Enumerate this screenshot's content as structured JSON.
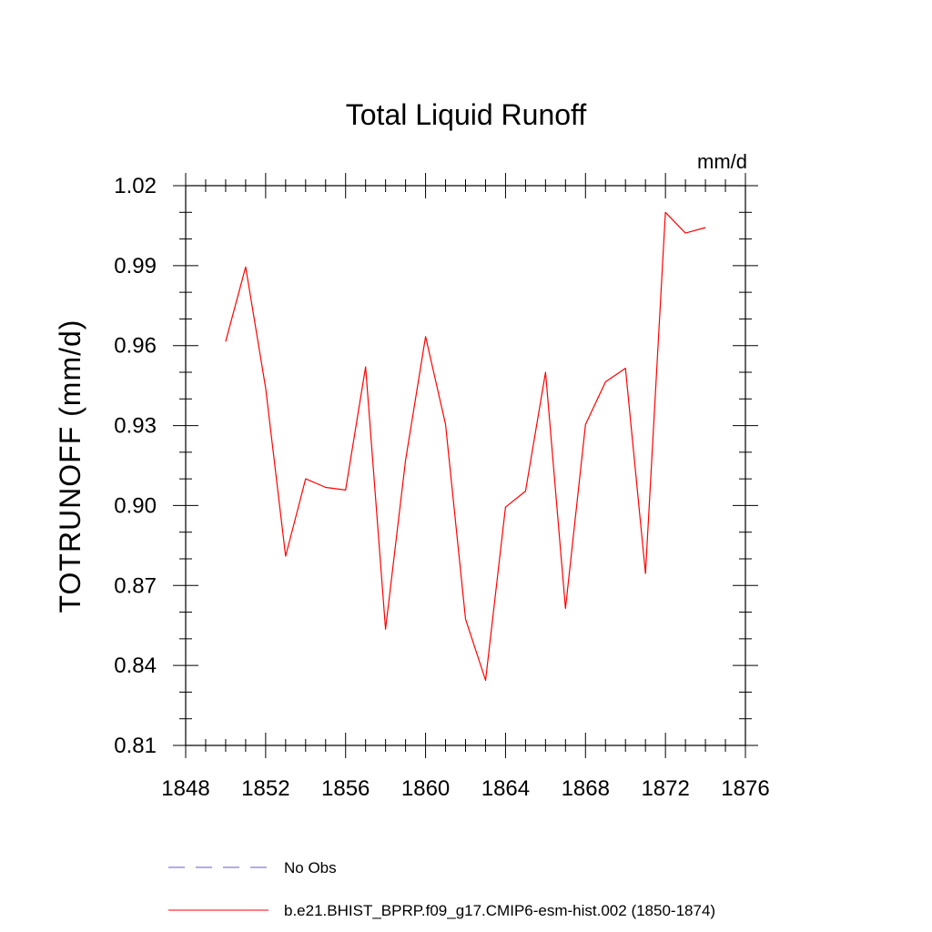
{
  "chart_data": {
    "type": "line",
    "title": "Total Liquid Runoff",
    "units": "mm/d",
    "ylabel": "TOTRUNOFF  (mm/d)",
    "xlabel": "",
    "xlim": [
      1848,
      1876
    ],
    "ylim": [
      0.81,
      1.02
    ],
    "x_ticks": [
      "1848",
      "1852",
      "1856",
      "1860",
      "1864",
      "1868",
      "1872",
      "1876"
    ],
    "y_ticks": [
      "0.81",
      "0.84",
      "0.87",
      "0.90",
      "0.93",
      "0.96",
      "0.99",
      "1.02"
    ],
    "grid": false,
    "legend_position": "bottom",
    "legend": [
      {
        "label": "No Obs",
        "color": "#6a5acd",
        "dash": "dashed"
      },
      {
        "label": "b.e21.BHIST_BPRP.f09_g17.CMIP6-esm-hist.002 (1850-1874)",
        "color": "#ff0000",
        "dash": "solid"
      }
    ],
    "series": [
      {
        "name": "b.e21.BHIST_BPRP.f09_g17.CMIP6-esm-hist.002 (1850-1874)",
        "color": "#ff0000",
        "x": [
          1850,
          1851,
          1852,
          1853,
          1854,
          1855,
          1856,
          1857,
          1858,
          1859,
          1860,
          1861,
          1862,
          1863,
          1864,
          1865,
          1866,
          1867,
          1868,
          1869,
          1870,
          1871,
          1872,
          1873,
          1874
        ],
        "y": [
          0.9615,
          0.9895,
          0.944,
          0.881,
          0.91,
          0.9068,
          0.9058,
          0.952,
          0.8536,
          0.917,
          0.9634,
          0.9305,
          0.8574,
          0.8344,
          0.8994,
          0.9054,
          0.95,
          0.8614,
          0.9304,
          0.9464,
          0.9515,
          0.8745,
          1.01,
          1.0022,
          1.0043
        ]
      }
    ]
  }
}
